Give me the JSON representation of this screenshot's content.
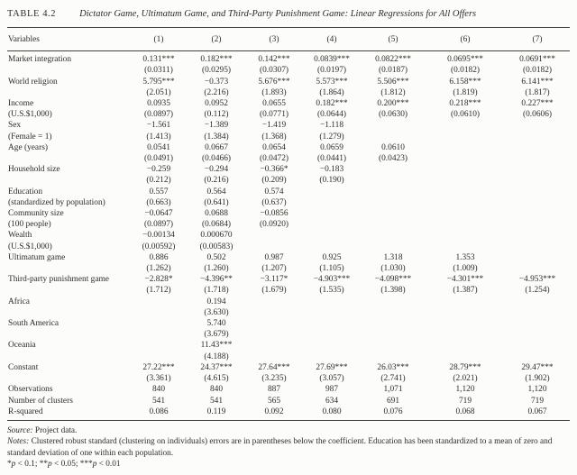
{
  "page": {
    "title_label": "TABLE 4.2",
    "title_caption": "Dictator Game, Ultimatum Game, and Third-Party Punishment Game: Linear Regressions for All Offers"
  },
  "table": {
    "header_label": "Variables",
    "header_cols": [
      "(1)",
      "(2)",
      "(3)",
      "(4)",
      "(5)",
      "(6)",
      "(7)"
    ],
    "rows": [
      {
        "label": "Market integration",
        "sublabel": "",
        "coef": [
          "0.131***",
          "0.182***",
          "0.142***",
          "0.0839***",
          "0.0822***",
          "0.0695***",
          "0.0691***"
        ],
        "se": [
          "(0.0311)",
          "(0.0295)",
          "(0.0307)",
          "(0.0197)",
          "(0.0187)",
          "(0.0182)",
          "(0.0182)"
        ]
      },
      {
        "label": "World religion",
        "sublabel": "",
        "coef": [
          "5.795***",
          "−0.373",
          "5.676***",
          "5.573***",
          "5.506***",
          "6.158***",
          "6.141***"
        ],
        "se": [
          "(2.051)",
          "(2.216)",
          "(1.893)",
          "(1.864)",
          "(1.812)",
          "(1.819)",
          "(1.817)"
        ]
      },
      {
        "label": "Income",
        "sublabel": "(U.S.$1,000)",
        "coef": [
          "0.0935",
          "0.0952",
          "0.0655",
          "0.182***",
          "0.200***",
          "0.218***",
          "0.227***"
        ],
        "se": [
          "(0.0897)",
          "(0.112)",
          "(0.0771)",
          "(0.0644)",
          "(0.0630)",
          "(0.0610)",
          "(0.0606)"
        ]
      },
      {
        "label": "Sex",
        "sublabel": "(Female = 1)",
        "coef": [
          "−1.561",
          "−1.389",
          "−1.419",
          "−1.118",
          "",
          "",
          ""
        ],
        "se": [
          "(1.413)",
          "(1.384)",
          "(1.368)",
          "(1.279)",
          "",
          "",
          ""
        ]
      },
      {
        "label": "Age (years)",
        "sublabel": "",
        "coef": [
          "0.0541",
          "0.0667",
          "0.0654",
          "0.0659",
          "0.0610",
          "",
          ""
        ],
        "se": [
          "(0.0491)",
          "(0.0466)",
          "(0.0472)",
          "(0.0441)",
          "(0.0423)",
          "",
          ""
        ]
      },
      {
        "label": "Household size",
        "sublabel": "",
        "coef": [
          "−0.259",
          "−0.294",
          "−0.366*",
          "−0.183",
          "",
          "",
          ""
        ],
        "se": [
          "(0.212)",
          "(0.216)",
          "(0.209)",
          "(0.190)",
          "",
          "",
          ""
        ]
      },
      {
        "label": "Education",
        "sublabel": "(standardized by population)",
        "coef": [
          "0.557",
          "0.564",
          "0.574",
          "",
          "",
          "",
          ""
        ],
        "se": [
          "(0.663)",
          "(0.641)",
          "(0.637)",
          "",
          "",
          "",
          ""
        ]
      },
      {
        "label": "Community size",
        "sublabel": "(100 people)",
        "coef": [
          "−0.0647",
          "0.0688",
          "−0.0856",
          "",
          "",
          "",
          ""
        ],
        "se": [
          "(0.0897)",
          "(0.0684)",
          "(0.0920)",
          "",
          "",
          "",
          ""
        ]
      },
      {
        "label": "Wealth",
        "sublabel": "(U.S.$1,000)",
        "coef": [
          "−0.00134",
          "0.000670",
          "",
          "",
          "",
          "",
          ""
        ],
        "se": [
          "(0.00592)",
          "(0.00583)",
          "",
          "",
          "",
          "",
          ""
        ]
      },
      {
        "label": "Ultimatum game",
        "sublabel": "",
        "coef": [
          "0.886",
          "0.502",
          "0.987",
          "0.925",
          "1.318",
          "1.353",
          ""
        ],
        "se": [
          "(1.262)",
          "(1.260)",
          "(1.207)",
          "(1.105)",
          "(1.030)",
          "(1.009)",
          ""
        ]
      },
      {
        "label": "Third-party punishment game",
        "sublabel": "",
        "coef": [
          "−2.828*",
          "−4.396**",
          "−3.117*",
          "−4.903***",
          "−4.098***",
          "−4.301***",
          "−4.953***"
        ],
        "se": [
          "(1.712)",
          "(1.718)",
          "(1.679)",
          "(1.535)",
          "(1.398)",
          "(1.387)",
          "(1.254)"
        ]
      },
      {
        "label": "Africa",
        "sublabel": "",
        "coef": [
          "",
          "0.194",
          "",
          "",
          "",
          "",
          ""
        ],
        "se": [
          "",
          "(3.630)",
          "",
          "",
          "",
          "",
          ""
        ]
      },
      {
        "label": "South America",
        "sublabel": "",
        "coef": [
          "",
          "5.740",
          "",
          "",
          "",
          "",
          ""
        ],
        "se": [
          "",
          "(3.679)",
          "",
          "",
          "",
          "",
          ""
        ]
      },
      {
        "label": "Oceania",
        "sublabel": "",
        "coef": [
          "",
          "11.43***",
          "",
          "",
          "",
          "",
          ""
        ],
        "se": [
          "",
          "(4.188)",
          "",
          "",
          "",
          "",
          ""
        ]
      },
      {
        "label": "Constant",
        "sublabel": "",
        "coef": [
          "27.22***",
          "24.37***",
          "27.64***",
          "27.69***",
          "26.03***",
          "28.79***",
          "29.47***"
        ],
        "se": [
          "(3.361)",
          "(4.615)",
          "(3.235)",
          "(3.057)",
          "(2.741)",
          "(2.021)",
          "(1.902)"
        ]
      }
    ],
    "stats": [
      {
        "label": "Observations",
        "values": [
          "840",
          "840",
          "887",
          "987",
          "1,071",
          "1,120",
          "1,120"
        ]
      },
      {
        "label": "Number of clusters",
        "values": [
          "541",
          "541",
          "565",
          "634",
          "691",
          "719",
          "719"
        ]
      },
      {
        "label": "R-squared",
        "values": [
          "0.086",
          "0.119",
          "0.092",
          "0.080",
          "0.076",
          "0.068",
          "0.067"
        ]
      }
    ]
  },
  "footer": {
    "source_label": "Source:",
    "source_text": "Project data.",
    "notes_label": "Notes:",
    "notes_text": "Clustered robust standard (clustering on individuals) errors are in parentheses below the coefficient. Education has been standardized to a mean of zero and standard deviation of one within each population.",
    "significance_parts": [
      {
        "text": "*"
      },
      {
        "text": "p",
        "italic": true
      },
      {
        "text": " < 0.1; **"
      },
      {
        "text": "p",
        "italic": true
      },
      {
        "text": " < 0.05; ***"
      },
      {
        "text": "p",
        "italic": true
      },
      {
        "text": " < 0.01"
      }
    ]
  }
}
